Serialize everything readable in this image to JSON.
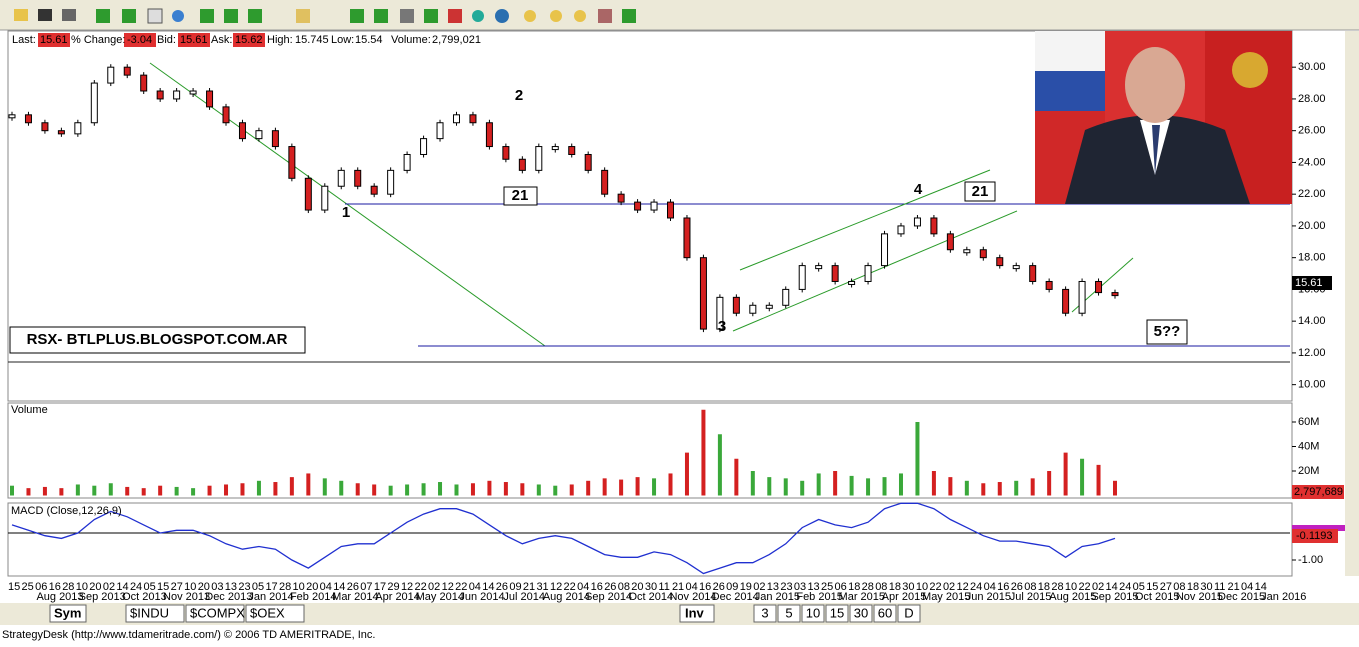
{
  "quote_bar": {
    "last_label": "Last:",
    "last": "15.61",
    "change_label": "% Change:",
    "change": "-3.04",
    "bid_label": "Bid:",
    "bid": "15.61",
    "ask_label": "Ask:",
    "ask": "15.62",
    "high_label": "High:",
    "high": "15.745",
    "low_label": "Low:",
    "low": "15.54",
    "volume_label": "Volume:",
    "volume": "2,799,021"
  },
  "price": {
    "values": [
      27,
      26.5,
      26,
      25.8,
      26.5,
      29,
      30,
      29.5,
      28.5,
      28,
      28.5,
      28.5,
      27.5,
      26.5,
      25.5,
      26,
      25,
      23,
      21,
      22.5,
      23.5,
      22.5,
      22,
      23.5,
      24.5,
      25.5,
      26.5,
      27,
      26.5,
      25,
      24.2,
      23.5,
      25,
      25,
      24.5,
      23.5,
      22,
      21.5,
      21,
      21.5,
      20.5,
      18,
      13.5,
      15.5,
      14.5,
      15,
      15,
      16,
      17.5,
      17.5,
      16.5,
      16.5,
      17.5,
      19.5,
      20,
      20.5,
      19.5,
      18.5,
      18.5,
      18,
      17.5,
      17.5,
      16.5,
      16,
      14.5,
      16.5,
      15.8,
      15.61
    ],
    "ylim": [
      8.97,
      32.28
    ],
    "ticks": [
      {
        "value": 30,
        "label": "30.00"
      },
      {
        "value": 28,
        "label": "28.00"
      },
      {
        "value": 26,
        "label": "26.00"
      },
      {
        "value": 24,
        "label": "24.00"
      },
      {
        "value": 22,
        "label": "22.00"
      },
      {
        "value": 20,
        "label": "20.00"
      },
      {
        "value": 18,
        "label": "18.00"
      },
      {
        "value": 16,
        "label": "16.00"
      },
      {
        "value": 14,
        "label": "14.00"
      },
      {
        "value": 12,
        "label": "12.00"
      },
      {
        "value": 10,
        "label": "10.00"
      }
    ],
    "current": {
      "value": 15.61,
      "label": "15.61"
    }
  },
  "annotations": {
    "wave1": "1",
    "wave2": "2",
    "wave3": "3",
    "wave4": "4",
    "box21a": "21",
    "box21b": "21",
    "target": "5??",
    "blog": "RSX- BTLPLUS.BLOGSPOT.COM.AR"
  },
  "volume": {
    "title": "Volume",
    "values": [
      8,
      6,
      7,
      6,
      9,
      8,
      10,
      7,
      6,
      8,
      7,
      6,
      8,
      9,
      10,
      12,
      11,
      15,
      18,
      14,
      12,
      10,
      9,
      8,
      9,
      10,
      11,
      9,
      10,
      12,
      11,
      10,
      9,
      8,
      9,
      12,
      14,
      13,
      15,
      14,
      18,
      35,
      70,
      50,
      30,
      20,
      15,
      14,
      12,
      18,
      20,
      16,
      14,
      15,
      18,
      60,
      20,
      15,
      12,
      10,
      11,
      12,
      14,
      20,
      35,
      30,
      25,
      12
    ],
    "ticks": [
      {
        "value": 60,
        "label": "60M"
      },
      {
        "value": 40,
        "label": "40M"
      },
      {
        "value": 20,
        "label": "20M"
      }
    ],
    "current": "2,797,689"
  },
  "macd": {
    "title": "MACD (Close,12,26,9)",
    "values": [
      0.3,
      0.1,
      -0.1,
      -0.2,
      0,
      0.5,
      0.8,
      0.6,
      0.3,
      0,
      0.1,
      0.1,
      -0.1,
      -0.4,
      -0.6,
      -0.5,
      -0.6,
      -1,
      -1.3,
      -0.9,
      -0.5,
      -0.4,
      -0.4,
      0,
      0.4,
      0.7,
      0.9,
      0.9,
      0.7,
      0.3,
      -0.1,
      -0.4,
      -0.2,
      -0.1,
      -0.2,
      -0.5,
      -0.8,
      -0.9,
      -0.9,
      -0.7,
      -0.8,
      -1.1,
      -1.5,
      -1.3,
      -1.1,
      -1.1,
      -0.8,
      -0.4,
      0.2,
      0.5,
      0.3,
      0.2,
      0.4,
      0.9,
      1.1,
      1.1,
      0.9,
      0.5,
      0.2,
      -0.1,
      -0.3,
      -0.3,
      -0.4,
      -0.5,
      -0.9,
      -0.5,
      -0.4,
      -0.2
    ],
    "ticks": [
      {
        "value": -1,
        "label": "-1.00"
      }
    ],
    "current": "-0.1193"
  },
  "time_axis": {
    "days": [
      "15",
      "25",
      "06",
      "16",
      "28",
      "10",
      "20",
      "02",
      "14",
      "24",
      "05",
      "15",
      "27",
      "10",
      "20",
      "03",
      "13",
      "23",
      "05",
      "17",
      "28",
      "10",
      "20",
      "04",
      "14",
      "26",
      "07",
      "17",
      "29",
      "12",
      "22",
      "02",
      "12",
      "22",
      "04",
      "14",
      "26",
      "09",
      "21",
      "31",
      "12",
      "22",
      "04",
      "16",
      "26",
      "08",
      "20",
      "30",
      "11",
      "21",
      "04",
      "16",
      "26",
      "09",
      "19",
      "02",
      "13",
      "23",
      "03",
      "13",
      "25",
      "06",
      "18",
      "28",
      "08",
      "18",
      "30",
      "10",
      "22",
      "02",
      "12",
      "24",
      "04",
      "16",
      "26",
      "08",
      "18",
      "28",
      "10",
      "22",
      "02",
      "14",
      "24",
      "05",
      "15",
      "27",
      "08",
      "18",
      "30",
      "11",
      "21",
      "04",
      "14"
    ],
    "months": [
      "Aug 2013",
      "Sep 2013",
      "Oct 2013",
      "Nov 2013",
      "Dec 2013",
      "Jan 2014",
      "Feb 2014",
      "Mar 2014",
      "Apr 2014",
      "May 2014",
      "Jun 2014",
      "Jul 2014",
      "Aug 2014",
      "Sep 2014",
      "Oct 2014",
      "Nov 2014",
      "Dec 2014",
      "Jan 2015",
      "Feb 2015",
      "Mar 2015",
      "Apr 2015",
      "May 2015",
      "Jun 2015",
      "Jul 2015",
      "Aug 2015",
      "Sep 2015",
      "Oct 2015",
      "Nov 2015",
      "Dec 2015",
      "Jan 2016"
    ]
  },
  "tabs": {
    "sym": "Sym",
    "symbols": [
      "$INDU",
      "$COMPX",
      "$OEX"
    ],
    "inv": "Inv",
    "intervals": [
      "3",
      "5",
      "10",
      "15",
      "30",
      "60",
      "D"
    ]
  },
  "status": "StrategyDesk (http://www.tdameritrade.com/) © 2006 TD AMERITRADE, Inc."
}
